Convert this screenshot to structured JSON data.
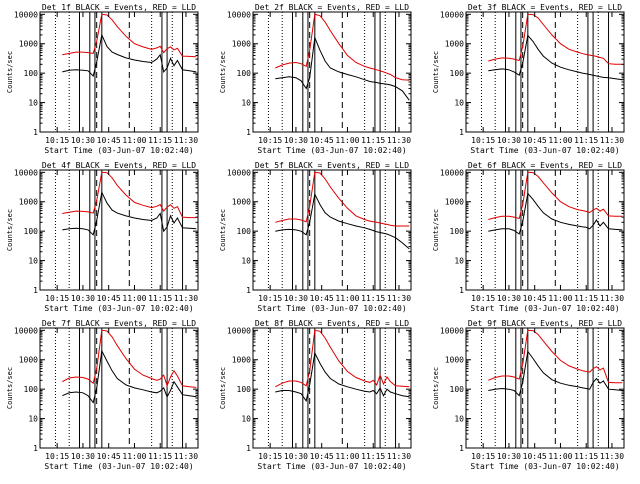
{
  "colors": {
    "events": "#000000",
    "lld": "#e00000",
    "frame": "#000000"
  },
  "panel_title_suffix": "BLACK = Events, RED = LLD",
  "xlabel": "Start Time (03-Jun-07 10:02:40)",
  "ylabel": "Counts/sec",
  "x_ticks": [
    "10:15",
    "10:30",
    "10:45",
    "11:00",
    "11:15",
    "11:30"
  ],
  "x_tick_values": [
    15,
    30,
    45,
    60,
    75,
    90
  ],
  "xlim": [
    5,
    97
  ],
  "y_ticks": [
    "1",
    "10",
    "100",
    "1000",
    "10000"
  ],
  "y_tick_values": [
    1,
    10,
    100,
    1000,
    10000
  ],
  "ylim": [
    1,
    12000
  ],
  "y_scale": "log",
  "event_markers": {
    "dotted": [
      14,
      22,
      70,
      82
    ],
    "solid": [
      28,
      34,
      37,
      41,
      76,
      79,
      88
    ],
    "dashed": [
      38,
      57
    ]
  },
  "chart_data": [
    {
      "type": "line",
      "title": "Det 1f",
      "x": [
        18,
        22,
        26,
        30,
        33,
        36,
        38,
        41,
        44,
        47,
        50,
        55,
        60,
        65,
        70,
        73,
        75,
        77,
        79,
        81,
        83,
        85,
        88,
        92,
        96
      ],
      "series": [
        {
          "name": "Events",
          "values": [
            110,
            125,
            130,
            125,
            120,
            80,
            240,
            2000,
            800,
            520,
            430,
            330,
            280,
            250,
            230,
            300,
            420,
            110,
            150,
            320,
            180,
            270,
            130,
            120,
            110
          ]
        },
        {
          "name": "LLD",
          "values": [
            420,
            470,
            520,
            520,
            500,
            470,
            1200,
            10000,
            9500,
            6500,
            3800,
            1800,
            1000,
            780,
            650,
            720,
            820,
            500,
            680,
            780,
            620,
            700,
            380,
            370,
            360
          ]
        }
      ]
    },
    {
      "type": "line",
      "title": "Det 2f",
      "x": [
        18,
        22,
        26,
        30,
        33,
        36,
        38,
        41,
        44,
        47,
        50,
        55,
        60,
        65,
        70,
        73,
        75,
        77,
        79,
        81,
        83,
        85,
        88,
        92,
        96
      ],
      "series": [
        {
          "name": "Events",
          "values": [
            65,
            70,
            75,
            70,
            55,
            30,
            70,
            1600,
            600,
            260,
            150,
            110,
            90,
            75,
            60,
            52,
            50,
            48,
            45,
            44,
            42,
            40,
            35,
            25,
            12
          ]
        },
        {
          "name": "LLD",
          "values": [
            150,
            190,
            220,
            230,
            210,
            170,
            600,
            10000,
            9000,
            5500,
            2800,
            1000,
            400,
            230,
            170,
            150,
            140,
            130,
            120,
            110,
            100,
            90,
            70,
            60,
            58
          ]
        }
      ]
    },
    {
      "type": "line",
      "title": "Det 3f",
      "x": [
        18,
        22,
        26,
        30,
        33,
        36,
        38,
        41,
        44,
        47,
        50,
        55,
        60,
        65,
        70,
        73,
        75,
        77,
        79,
        81,
        83,
        85,
        88,
        92,
        96
      ],
      "series": [
        {
          "name": "Events",
          "values": [
            120,
            130,
            140,
            130,
            110,
            85,
            220,
            1900,
            1200,
            650,
            380,
            220,
            160,
            130,
            110,
            100,
            95,
            90,
            85,
            80,
            75,
            72,
            70,
            65,
            60
          ]
        },
        {
          "name": "LLD",
          "values": [
            260,
            300,
            330,
            320,
            300,
            270,
            800,
            10000,
            9800,
            7500,
            4500,
            2000,
            1000,
            650,
            520,
            460,
            430,
            410,
            390,
            370,
            340,
            320,
            210,
            200,
            200
          ]
        }
      ]
    },
    {
      "type": "line",
      "title": "Det 4f",
      "x": [
        18,
        22,
        26,
        30,
        33,
        36,
        38,
        41,
        44,
        47,
        50,
        55,
        60,
        65,
        70,
        73,
        75,
        77,
        79,
        81,
        83,
        85,
        88,
        92,
        96
      ],
      "series": [
        {
          "name": "Events",
          "values": [
            110,
            120,
            125,
            120,
            110,
            75,
            230,
            2100,
            900,
            520,
            410,
            330,
            280,
            250,
            230,
            280,
            400,
            100,
            140,
            330,
            190,
            280,
            130,
            125,
            120
          ]
        },
        {
          "name": "LLD",
          "values": [
            400,
            440,
            480,
            470,
            450,
            410,
            1100,
            10000,
            9700,
            6500,
            3600,
            1700,
            950,
            760,
            630,
            700,
            800,
            480,
            660,
            790,
            600,
            680,
            300,
            290,
            290
          ]
        }
      ]
    },
    {
      "type": "line",
      "title": "Det 5f",
      "x": [
        18,
        22,
        26,
        30,
        33,
        36,
        38,
        41,
        44,
        47,
        50,
        55,
        60,
        65,
        70,
        73,
        75,
        77,
        79,
        81,
        83,
        85,
        88,
        92,
        96
      ],
      "series": [
        {
          "name": "Events",
          "values": [
            100,
            110,
            115,
            110,
            100,
            75,
            200,
            1800,
            800,
            420,
            300,
            220,
            180,
            150,
            130,
            115,
            105,
            95,
            90,
            85,
            80,
            72,
            60,
            40,
            25
          ]
        },
        {
          "name": "LLD",
          "values": [
            200,
            230,
            260,
            260,
            240,
            210,
            700,
            10000,
            9500,
            6000,
            3200,
            1300,
            600,
            330,
            250,
            220,
            210,
            200,
            190,
            180,
            170,
            160,
            150,
            150,
            150
          ]
        }
      ]
    },
    {
      "type": "line",
      "title": "Det 6f",
      "x": [
        18,
        22,
        26,
        30,
        33,
        36,
        38,
        41,
        44,
        47,
        50,
        55,
        60,
        65,
        70,
        73,
        75,
        77,
        79,
        81,
        83,
        85,
        88,
        92,
        96
      ],
      "series": [
        {
          "name": "Events",
          "values": [
            100,
            110,
            120,
            120,
            105,
            80,
            210,
            1900,
            1200,
            700,
            420,
            260,
            200,
            170,
            150,
            140,
            135,
            120,
            160,
            240,
            150,
            200,
            120,
            115,
            110
          ]
        },
        {
          "name": "LLD",
          "values": [
            250,
            290,
            320,
            320,
            300,
            270,
            800,
            10000,
            9800,
            7300,
            4400,
            2000,
            1000,
            680,
            540,
            500,
            470,
            430,
            520,
            600,
            480,
            560,
            330,
            320,
            320
          ]
        }
      ]
    },
    {
      "type": "line",
      "title": "Det 7f",
      "x": [
        18,
        22,
        26,
        30,
        33,
        36,
        38,
        41,
        44,
        47,
        50,
        55,
        60,
        65,
        70,
        73,
        75,
        77,
        79,
        81,
        83,
        85,
        88,
        92,
        96
      ],
      "series": [
        {
          "name": "Events",
          "values": [
            60,
            75,
            80,
            75,
            60,
            35,
            110,
            2000,
            900,
            420,
            230,
            140,
            110,
            95,
            80,
            75,
            85,
            110,
            55,
            90,
            180,
            120,
            65,
            60,
            55
          ]
        },
        {
          "name": "LLD",
          "values": [
            180,
            240,
            260,
            250,
            220,
            160,
            500,
            10000,
            9500,
            6000,
            3000,
            1100,
            480,
            300,
            230,
            200,
            220,
            300,
            130,
            260,
            420,
            280,
            130,
            120,
            115
          ]
        }
      ]
    },
    {
      "type": "line",
      "title": "Det 8f",
      "x": [
        18,
        22,
        26,
        30,
        33,
        36,
        38,
        41,
        44,
        47,
        50,
        55,
        60,
        65,
        70,
        73,
        75,
        77,
        79,
        81,
        83,
        85,
        88,
        92,
        96
      ],
      "series": [
        {
          "name": "Events",
          "values": [
            80,
            90,
            90,
            80,
            70,
            40,
            140,
            1700,
            750,
            380,
            230,
            150,
            120,
            100,
            85,
            80,
            90,
            70,
            110,
            60,
            100,
            80,
            70,
            60,
            55
          ]
        },
        {
          "name": "LLD",
          "values": [
            120,
            160,
            190,
            190,
            170,
            130,
            420,
            10000,
            9300,
            5500,
            2700,
            900,
            400,
            250,
            190,
            170,
            200,
            140,
            300,
            150,
            260,
            180,
            130,
            125,
            120
          ]
        }
      ]
    },
    {
      "type": "line",
      "title": "Det 9f",
      "x": [
        18,
        22,
        26,
        30,
        33,
        36,
        38,
        41,
        44,
        47,
        50,
        55,
        60,
        65,
        70,
        73,
        75,
        77,
        79,
        81,
        83,
        85,
        88,
        92,
        96
      ],
      "series": [
        {
          "name": "Events",
          "values": [
            90,
            100,
            105,
            100,
            90,
            60,
            170,
            1900,
            1100,
            620,
            360,
            210,
            160,
            135,
            120,
            110,
            105,
            100,
            170,
            230,
            160,
            190,
            100,
            95,
            90
          ]
        },
        {
          "name": "LLD",
          "values": [
            200,
            250,
            280,
            280,
            260,
            220,
            700,
            10000,
            9800,
            7200,
            4300,
            1900,
            950,
            620,
            480,
            420,
            400,
            380,
            500,
            580,
            450,
            520,
            170,
            165,
            165
          ]
        }
      ]
    }
  ]
}
